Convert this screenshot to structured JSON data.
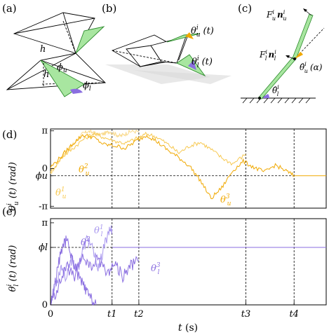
{
  "panels": {
    "a": "(a)",
    "b": "(b)",
    "c": "(c)",
    "d": "(d)",
    "e": "(e)"
  },
  "panel_a": {
    "h_top": "h",
    "h_bottom": "h",
    "phi_u": "ϕ",
    "phi_u_sub": "u",
    "phi_l": "ϕ",
    "phi_l_sub": "l"
  },
  "panel_b": {
    "theta_u": "θ",
    "theta_u_sup": "i",
    "theta_u_sub": "u",
    "theta_u_arg": "(t)",
    "theta_l": "θ",
    "theta_l_sup": "i",
    "theta_l_sub": "l",
    "theta_l_arg": "(t)"
  },
  "panel_c": {
    "force_u": "F",
    "force_u_sup": "i",
    "force_u_sub": "u",
    "n_u": "n",
    "n_u_sup": "i",
    "n_u_sub": "u",
    "force_l": "F",
    "force_l_sup": "i",
    "force_l_sub": "l",
    "n_l": "n",
    "n_l_sup": "i",
    "n_l_sub": "l",
    "theta_hat_u": "θ̂",
    "theta_hat_u_sup": "i",
    "theta_hat_u_sub": "u",
    "theta_hat_u_arg": "(α)",
    "theta_hat_l": "θ̂",
    "theta_hat_l_sup": "i",
    "theta_hat_l_sub": "l"
  },
  "colors": {
    "orange": "#f0a800",
    "orange_light": "#f7c850",
    "orange_pale": "#f9d98a",
    "purple": "#8a6ee0",
    "purple_light": "#a998ee",
    "purple_pale": "#c4b8f4",
    "green": "#a8e6a0",
    "green_edge": "#2c8a2c",
    "gray": "#d8d8d8"
  },
  "chart_data": [
    {
      "type": "line",
      "panel": "(d)",
      "ylabel": "θᵢᵘ (t) (rad)",
      "ytick_labels": [
        "π",
        "0",
        "ϕu",
        "-π"
      ],
      "yticks": [
        3.1416,
        0,
        -0.6,
        -3.1416
      ],
      "ylim": [
        -3.3,
        3.3
      ],
      "reference_line": {
        "label": "ϕu",
        "y": -0.6
      },
      "event_lines_t": [
        2.3,
        3.3,
        7.3,
        9.1
      ],
      "series": [
        {
          "name": "θu1",
          "label": "θ",
          "sup": "1",
          "sub": "u",
          "end_t": 3.3,
          "x": [
            0,
            0.2,
            0.4,
            0.6,
            0.8,
            1.0,
            1.2,
            1.4,
            1.6,
            1.8,
            2.0,
            2.2,
            2.4,
            2.6,
            2.8,
            3.0,
            3.3
          ],
          "y": [
            -0.4,
            0.2,
            0.9,
            1.4,
            1.9,
            2.4,
            2.9,
            3.1,
            3.0,
            2.8,
            2.9,
            3.1,
            2.9,
            2.7,
            2.9,
            3.1,
            3.1
          ]
        },
        {
          "name": "θu2",
          "label": "θ",
          "sup": "2",
          "sub": "u",
          "end_t": 7.3,
          "x": [
            0,
            0.4,
            0.8,
            1.2,
            1.6,
            2.0,
            2.4,
            2.8,
            3.2,
            3.6,
            4.0,
            4.4,
            4.8,
            5.2,
            5.6,
            6.0,
            6.4,
            6.8,
            7.3
          ],
          "y": [
            -0.3,
            0.9,
            1.6,
            2.4,
            2.9,
            2.6,
            2.3,
            2.1,
            2.5,
            2.9,
            2.6,
            2.0,
            1.3,
            1.9,
            2.2,
            1.6,
            0.9,
            0.4,
            1.2
          ]
        },
        {
          "name": "θu3",
          "label": "θ",
          "sup": "3",
          "sub": "u",
          "end_t": 9.1,
          "x": [
            0,
            0.4,
            0.8,
            1.2,
            1.6,
            2.0,
            2.4,
            2.8,
            3.2,
            3.6,
            4.0,
            4.4,
            4.8,
            5.2,
            5.6,
            6.0,
            6.4,
            6.8,
            7.2,
            7.6,
            8.0,
            8.4,
            8.8,
            9.1
          ],
          "y": [
            0.1,
            1.0,
            2.0,
            2.8,
            2.6,
            2.0,
            1.9,
            1.7,
            2.3,
            2.8,
            2.2,
            1.5,
            0.9,
            0.2,
            -1.0,
            -2.5,
            -1.6,
            -0.2,
            0.6,
            0.1,
            -0.3,
            0.3,
            -0.2,
            -0.6
          ]
        }
      ]
    },
    {
      "type": "line",
      "panel": "(e)",
      "ylabel": "θᵢˡ (t) (rad)",
      "xlabel": "t (s)",
      "xtick_labels": [
        "0",
        "t1",
        "t2",
        "t3",
        "t4"
      ],
      "xticks": [
        0,
        2.3,
        3.3,
        7.3,
        9.1
      ],
      "ytick_labels": [
        "π",
        "ϕl",
        "0"
      ],
      "yticks": [
        3.1416,
        2.2,
        0
      ],
      "ylim": [
        0,
        3.3
      ],
      "reference_line": {
        "label": "ϕl",
        "y": 2.2
      },
      "event_lines_t": [
        2.3,
        3.3,
        7.3,
        9.1
      ],
      "series": [
        {
          "name": "θl1",
          "label": "θ",
          "sup": "1",
          "sub": "l",
          "end_t": 2.3,
          "x": [
            0,
            0.2,
            0.4,
            0.6,
            0.8,
            1.0,
            1.2,
            1.4,
            1.6,
            1.8,
            2.0,
            2.15,
            2.3
          ],
          "y": [
            0.1,
            0.8,
            1.5,
            1.0,
            1.8,
            1.3,
            2.1,
            2.6,
            2.0,
            1.4,
            2.2,
            2.8,
            2.9
          ]
        },
        {
          "name": "θl2",
          "label": "θ",
          "sup": "2",
          "sub": "l",
          "end_t": 1.7,
          "x": [
            0,
            0.2,
            0.4,
            0.6,
            0.8,
            1.0,
            1.2,
            1.4,
            1.6,
            1.7
          ],
          "y": [
            0.0,
            1.0,
            2.1,
            2.5,
            1.8,
            1.2,
            0.8,
            0.4,
            0.1,
            0.0
          ]
        },
        {
          "name": "θl3",
          "label": "θ",
          "sup": "3",
          "sub": "l",
          "end_t": 3.3,
          "x": [
            0,
            0.3,
            0.6,
            0.9,
            1.2,
            1.5,
            1.8,
            2.1,
            2.4,
            2.7,
            3.0,
            3.3
          ],
          "y": [
            0.0,
            0.7,
            1.5,
            1.0,
            1.9,
            1.4,
            1.8,
            1.2,
            1.6,
            1.1,
            1.5,
            1.7
          ]
        }
      ]
    }
  ]
}
